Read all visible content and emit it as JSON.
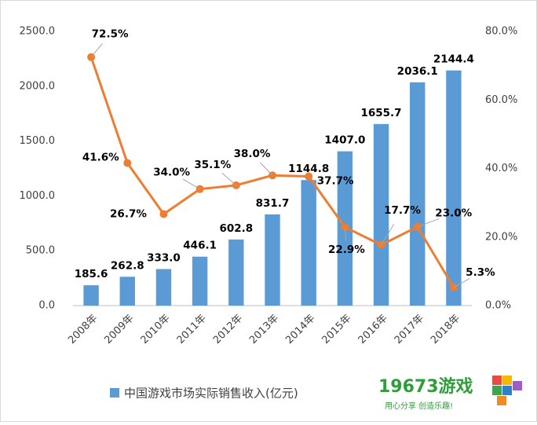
{
  "chart_data": {
    "type": "bar_line",
    "categories": [
      "2008年",
      "2009年",
      "2010年",
      "2011年",
      "2012年",
      "2013年",
      "2014年",
      "2015年",
      "2016年",
      "2017年",
      "2018年"
    ],
    "series": [
      {
        "name": "中国游戏市场实际销售收入(亿元)",
        "type": "bar",
        "color": "#5b9bd5",
        "values": [
          185.6,
          262.8,
          333.0,
          446.1,
          602.8,
          831.7,
          1144.8,
          1407.0,
          1655.7,
          2036.1,
          2144.4
        ],
        "value_labels": [
          "185.6",
          "262.8",
          "333.0",
          "446.1",
          "602.8",
          "831.7",
          "1144.8",
          "1407.0",
          "1655.7",
          "2036.1",
          "2144.4"
        ]
      },
      {
        "type": "line",
        "axis": "y2",
        "color": "#ed7d31",
        "values": [
          72.5,
          41.6,
          26.7,
          34.0,
          35.1,
          38.0,
          37.7,
          22.9,
          17.7,
          23.0,
          5.3
        ],
        "value_labels": [
          "72.5%",
          "41.6%",
          "26.7%",
          "34.0%",
          "35.1%",
          "38.0%",
          "37.7%",
          "22.9%",
          "17.7%",
          "23.0%",
          "5.3%"
        ]
      }
    ],
    "ylim": [
      0,
      2500
    ],
    "yticks": [
      {
        "value": 0,
        "label": "0.0"
      },
      {
        "value": 500,
        "label": "500.0"
      },
      {
        "value": 1000,
        "label": "1000.0"
      },
      {
        "value": 1500,
        "label": "1500.0"
      },
      {
        "value": 2000,
        "label": "2000.0"
      },
      {
        "value": 2500,
        "label": "2500.0"
      }
    ],
    "y2lim": [
      0,
      80
    ],
    "y2ticks": [
      {
        "value": 0,
        "label": "0.0%"
      },
      {
        "value": 20,
        "label": "20.0%"
      },
      {
        "value": 40,
        "label": "40.0%"
      },
      {
        "value": 60,
        "label": "60.0%"
      },
      {
        "value": 80,
        "label": "80.0%"
      }
    ],
    "legend": "bottom"
  },
  "watermark": {
    "title": "19673游戏",
    "subtitle": "用心分享 创造乐趣!"
  }
}
